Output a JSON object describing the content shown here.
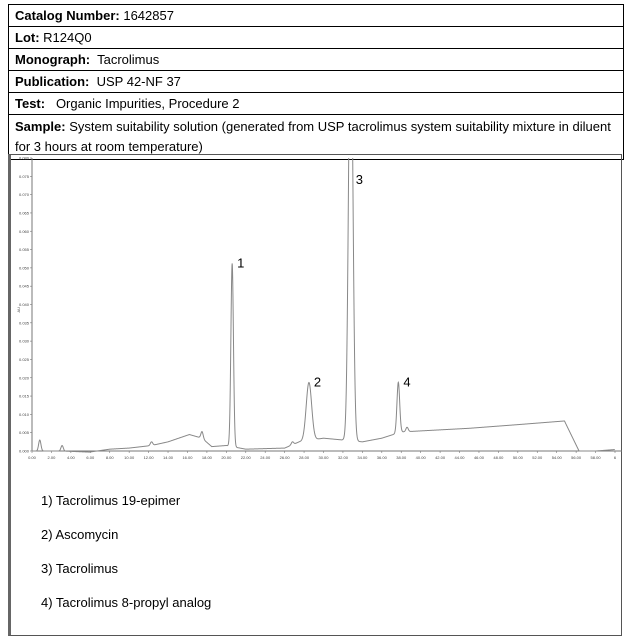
{
  "header": {
    "catalog": {
      "label": "Catalog Number:",
      "value": " 1642857"
    },
    "lot": {
      "label": "Lot:",
      "value": " R124Q0"
    },
    "monograph": {
      "label": "Monograph:",
      "value": "  Tacrolimus"
    },
    "publication": {
      "label": "Publication:",
      "value": "  USP 42-NF 37"
    },
    "test": {
      "label": "Test:",
      "value": "   Organic Impurities, Procedure 2"
    },
    "sample": {
      "label": "Sample:",
      "value": " System suitability solution (generated from USP tacrolimus system suitability mixture in diluent for 3 hours at room temperature)"
    }
  },
  "legend": [
    "1) Tacrolimus 19-epimer",
    "2) Ascomycin",
    "3) Tacrolimus",
    "4) Tacrolimus 8-propyl analog"
  ],
  "chart_data": {
    "type": "line",
    "title": "",
    "xlabel": "",
    "ylabel": "AU",
    "xlim": [
      0,
      60
    ],
    "ylim": [
      0,
      0.08
    ],
    "x_ticks": [
      "0.00",
      "2.00",
      "4.00",
      "6.00",
      "8.00",
      "10.00",
      "12.00",
      "14.00",
      "16.00",
      "18.00",
      "20.00",
      "22.00",
      "24.00",
      "26.00",
      "28.00",
      "30.00",
      "32.00",
      "34.00",
      "36.00",
      "38.00",
      "40.00",
      "42.00",
      "44.00",
      "46.00",
      "48.00",
      "50.00",
      "52.00",
      "54.00",
      "56.00",
      "58.00",
      "6"
    ],
    "y_ticks": [
      "0.000",
      "0.005",
      "0.010",
      "0.015",
      "0.020",
      "0.025",
      "0.030",
      "0.035",
      "0.040",
      "0.045",
      "0.050",
      "0.055",
      "0.060",
      "0.065",
      "0.070",
      "0.075",
      "0.080"
    ],
    "grid": false,
    "peaks": [
      {
        "label": "1",
        "rt": 20.6,
        "height": 0.05
      },
      {
        "label": "2",
        "rt": 28.5,
        "height": 0.0158
      },
      {
        "label": "3",
        "rt": 32.8,
        "height": 0.12
      },
      {
        "label": "4",
        "rt": 37.7,
        "height": 0.0138
      }
    ],
    "baseline": {
      "x": [
        0,
        0.8,
        3,
        5.9,
        8,
        10,
        12.3,
        14,
        16.2,
        17.5,
        18.5,
        20,
        22,
        26,
        27.5,
        30,
        32,
        34,
        36,
        38,
        45,
        50,
        54.8,
        55.2,
        56.3,
        58,
        60
      ],
      "y": [
        0,
        0,
        0,
        -0.0003,
        0.0005,
        0.0008,
        0.0015,
        0.0025,
        0.0045,
        0.0035,
        0.0012,
        0.0015,
        0.0005,
        0.0008,
        0.0025,
        0.0035,
        0.003,
        0.0025,
        0.0035,
        0.0052,
        0.0062,
        0.0072,
        0.0082,
        0.006,
        0,
        0,
        0.0004
      ]
    },
    "minor_peaks": [
      {
        "rt": 0.8,
        "height": 0.003
      },
      {
        "rt": 3.1,
        "height": 0.0015
      },
      {
        "rt": 12.3,
        "height": 0.001
      },
      {
        "rt": 17.5,
        "height": 0.0018
      },
      {
        "rt": 26.8,
        "height": 0.0008
      },
      {
        "rt": 38.6,
        "height": 0.0012
      }
    ]
  }
}
